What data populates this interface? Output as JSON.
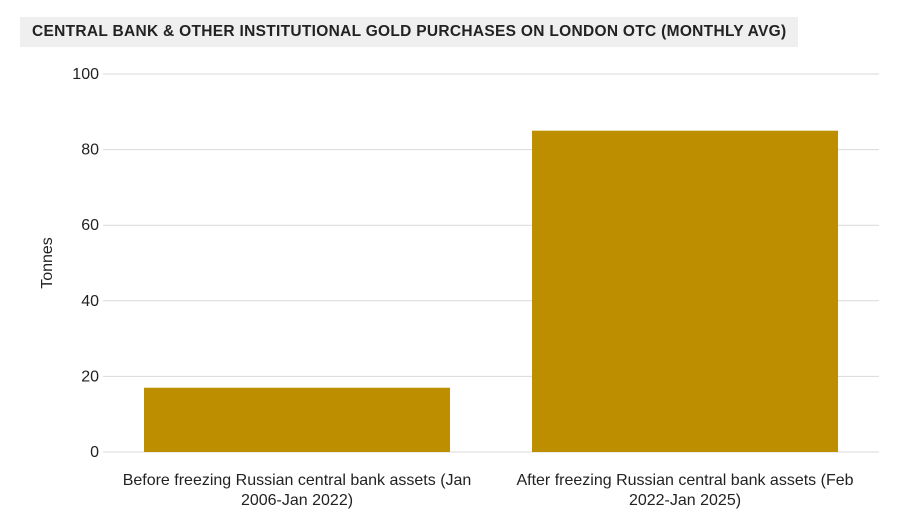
{
  "chart_data": {
    "type": "bar",
    "title": "CENTRAL BANK & OTHER INSTITUTIONAL GOLD PURCHASES ON LONDON OTC (MONTHLY AVG)",
    "xlabel": "",
    "ylabel": "Tonnes",
    "ylim": [
      0,
      100
    ],
    "yticks": [
      0,
      20,
      40,
      60,
      80,
      100
    ],
    "grid": true,
    "categories": [
      [
        "Before freezing Russian central bank assets (Jan",
        "2006-Jan 2022)"
      ],
      [
        "After freezing Russian central bank assets (Feb",
        "2022-Jan 2025)"
      ]
    ],
    "values": [
      17,
      85
    ],
    "bar_color": "#BD8F00",
    "grid_color": "#d9d9d9"
  }
}
